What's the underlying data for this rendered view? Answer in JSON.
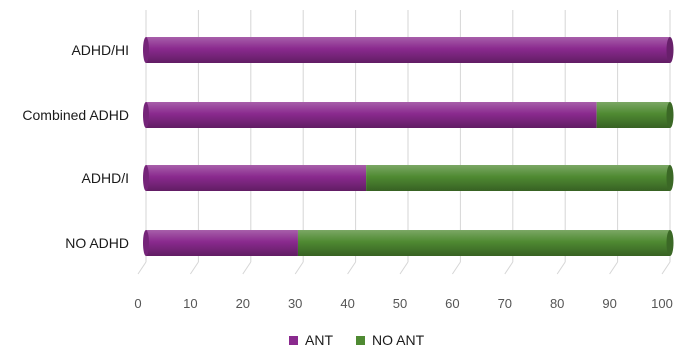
{
  "chart_data": {
    "type": "bar",
    "orientation": "horizontal",
    "stacked": true,
    "categories": [
      "ADHD/HI",
      "Combined ADHD",
      "ADHD/I",
      "NO ADHD"
    ],
    "series": [
      {
        "name": "ANT",
        "values": [
          100,
          86,
          42,
          29
        ],
        "color": "#8a2a8e"
      },
      {
        "name": "NO ANT",
        "values": [
          0,
          14,
          58,
          71
        ],
        "color": "#4f8a32"
      }
    ],
    "x_ticks": [
      "0",
      "10",
      "20",
      "30",
      "40",
      "50",
      "60",
      "70",
      "80",
      "90",
      "100"
    ],
    "xlim": [
      0,
      100
    ],
    "grid": true,
    "legend_position": "bottom"
  }
}
